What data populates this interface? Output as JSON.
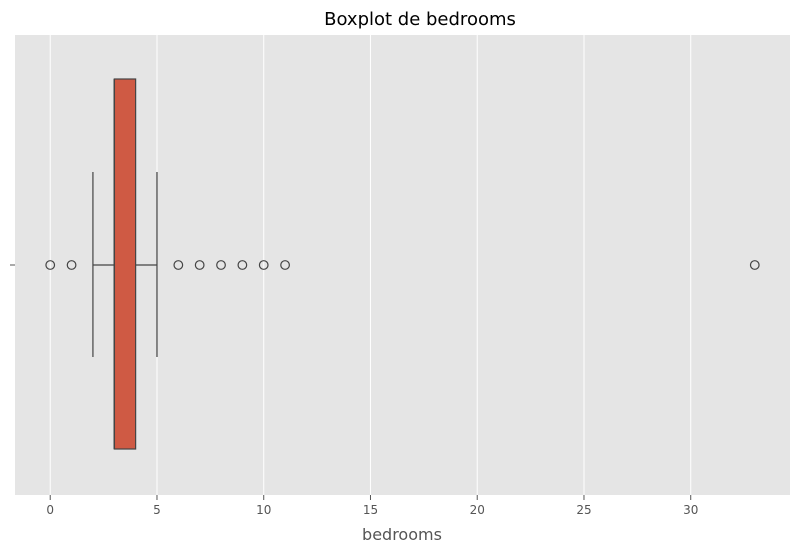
{
  "chart_data": {
    "type": "boxplot",
    "title": "Boxplot de bedrooms",
    "xlabel": "bedrooms",
    "ylabel": "",
    "xlim": [
      -1.65,
      34.65
    ],
    "xticks": [
      0,
      5,
      10,
      15,
      20,
      25,
      30
    ],
    "grid": true,
    "orientation": "horizontal",
    "box": {
      "q1": 3,
      "median": 3,
      "q3": 4,
      "whisker_low": 2,
      "whisker_high": 5
    },
    "outliers": [
      0,
      1,
      6,
      7,
      8,
      9,
      10,
      11,
      33
    ],
    "colors": {
      "background": "#e5e5e5",
      "grid": "#ffffff",
      "box_fill": "#cf5a44",
      "box_edge": "#444444",
      "outlier_edge": "#444444"
    }
  }
}
